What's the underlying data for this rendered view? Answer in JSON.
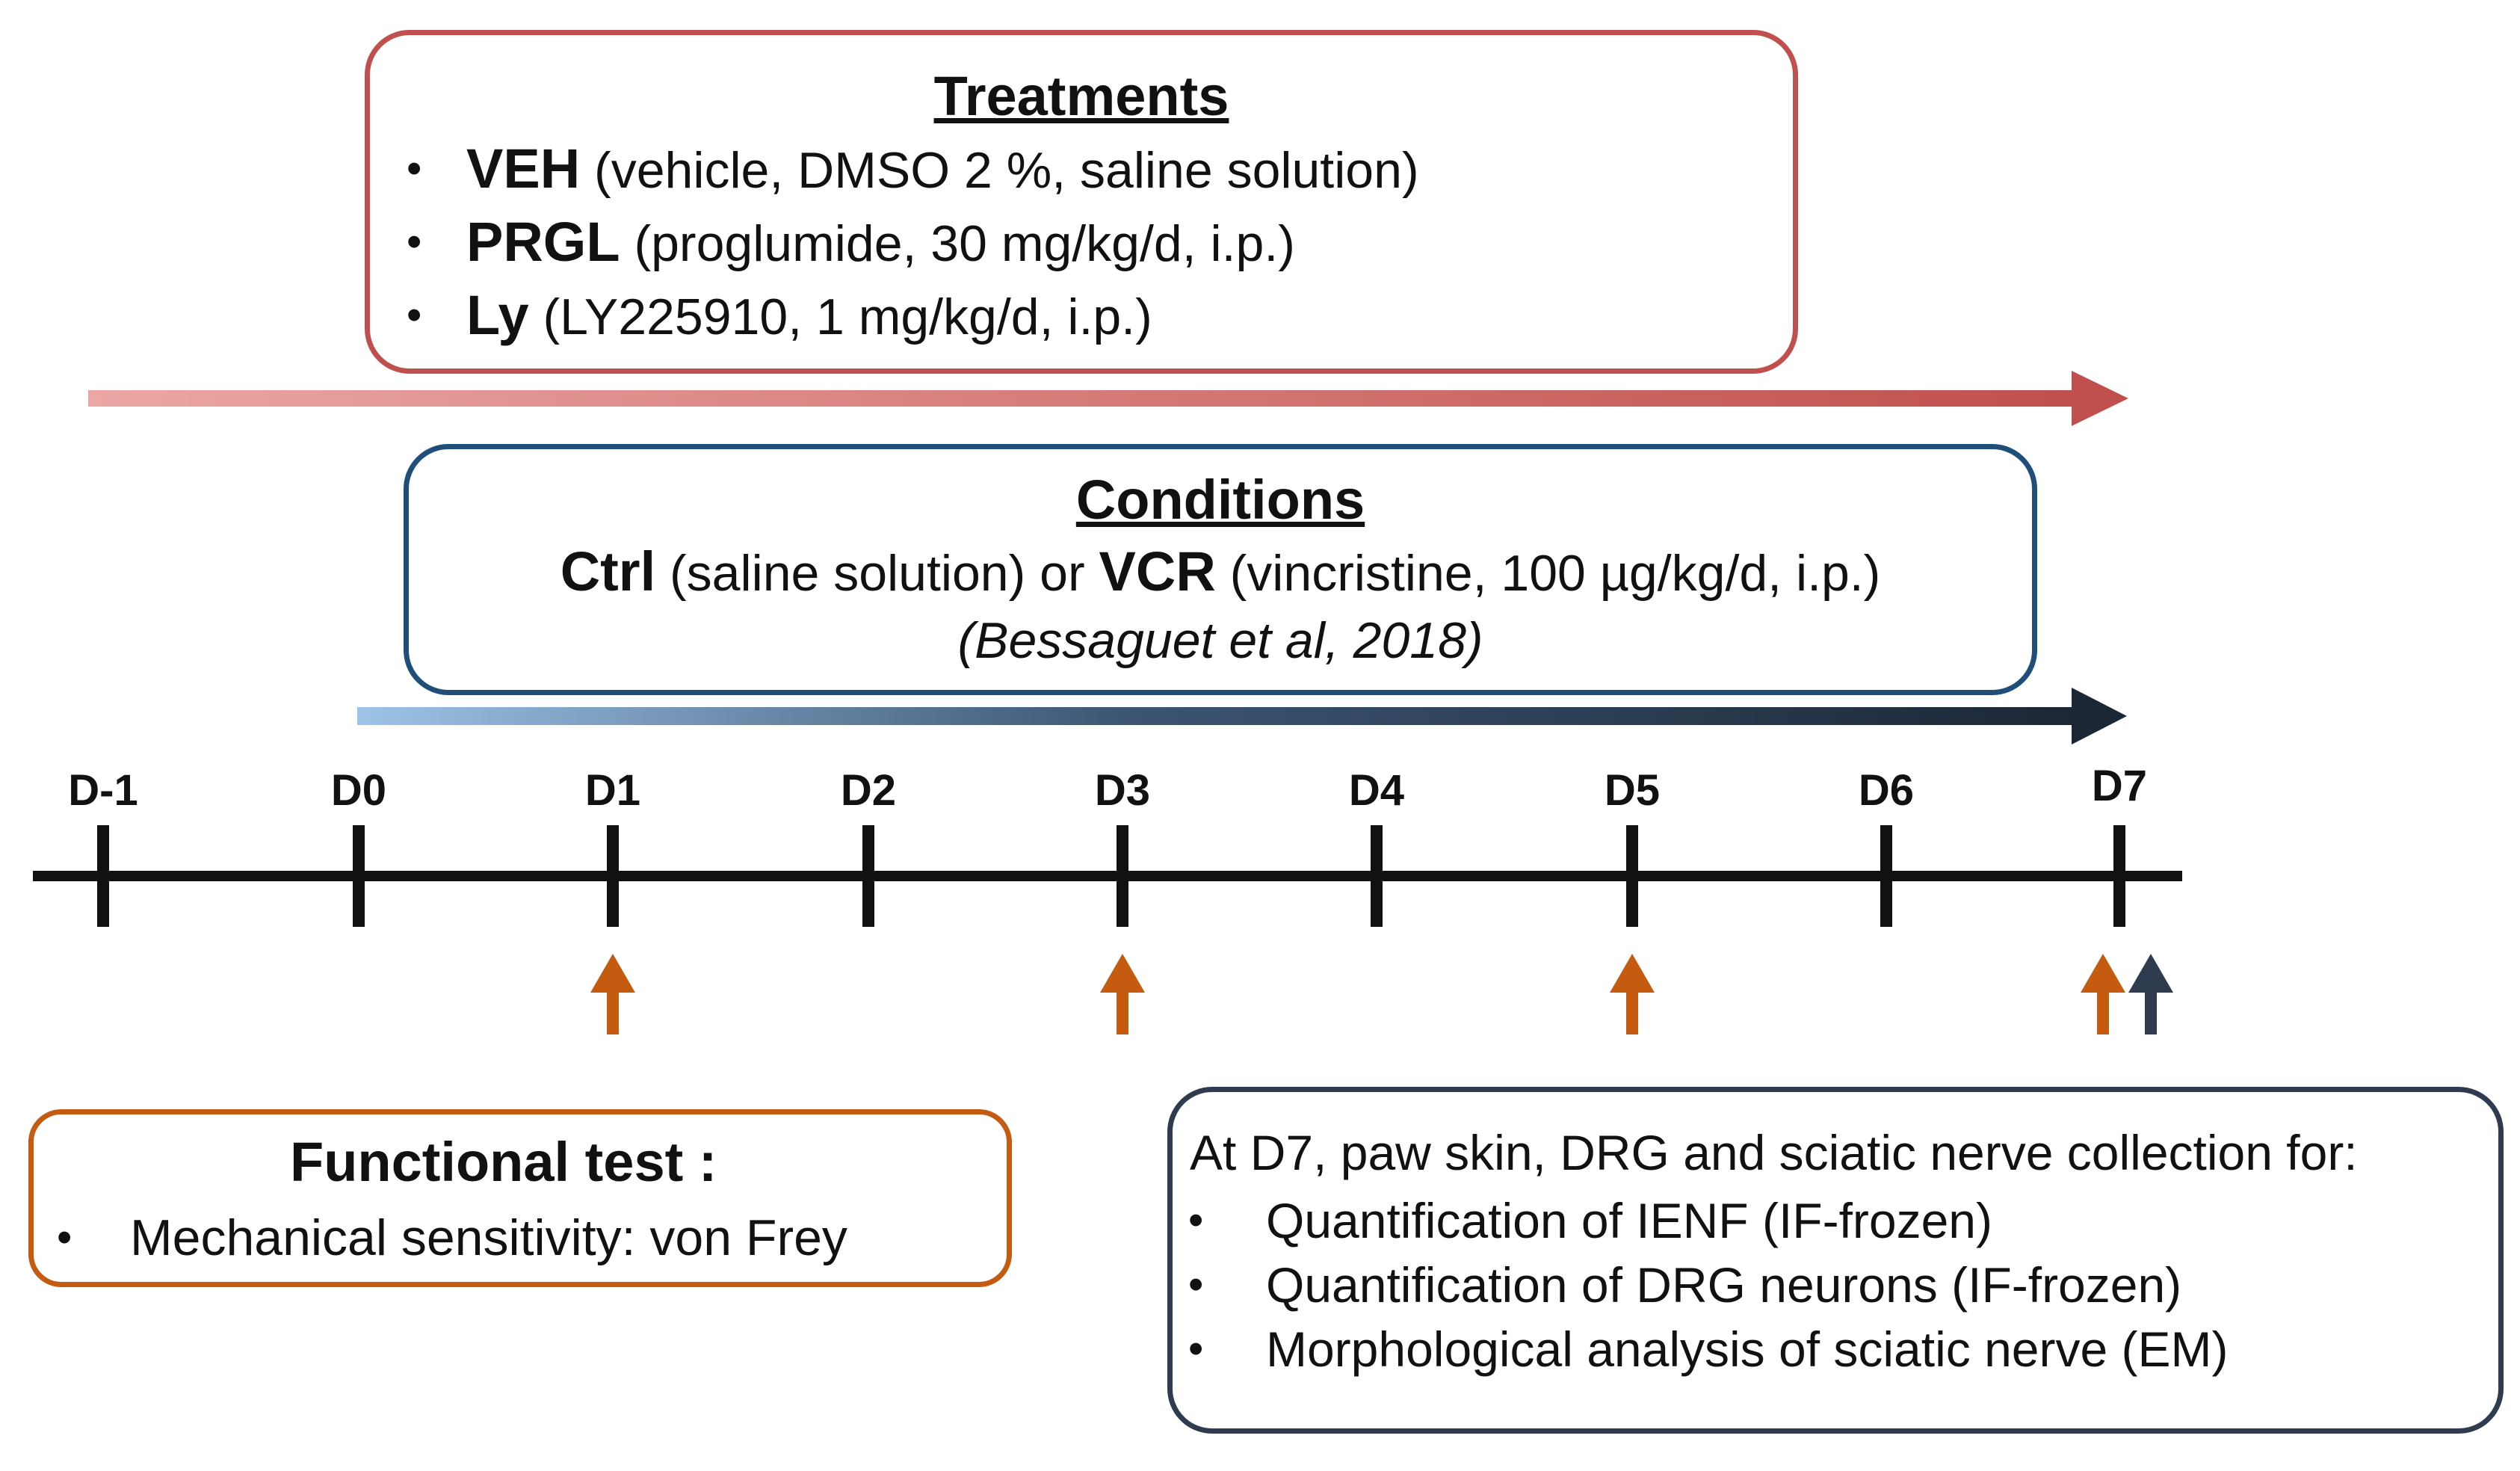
{
  "treatments": {
    "heading": "Treatments",
    "items": [
      {
        "abbr": "VEH",
        "detail": " (vehicle, DMSO 2 %, saline solution)"
      },
      {
        "abbr": "PRGL",
        "detail": " (proglumide, 30 mg/kg/d, i.p.)"
      },
      {
        "abbr": "Ly",
        "detail": " (LY225910, 1 mg/kg/d, i.p.)"
      }
    ]
  },
  "conditions": {
    "heading": "Conditions",
    "ctrl_abbr": "Ctrl",
    "ctrl_detail": " (saline solution) or ",
    "vcr_abbr": "VCR",
    "vcr_detail": " (vincristine, 100 µg/kg/d, i.p.)",
    "citation": "(Bessaguet et al, 2018)"
  },
  "timeline": {
    "days": [
      "D-1",
      "D0",
      "D1",
      "D2",
      "D3",
      "D4",
      "D5",
      "D6",
      "D7"
    ],
    "functional_test_days": [
      "D1",
      "D3",
      "D5",
      "D7"
    ],
    "collection_day": "D7"
  },
  "functional_test": {
    "title": "Functional test :",
    "items": [
      "Mechanical sensitivity: von Frey"
    ]
  },
  "collection": {
    "intro": "At D7, paw skin, DRG and sciatic nerve collection for:",
    "items": [
      "Quantification of IENF (IF-frozen)",
      "Quantification of DRG neurons (IF-frozen)",
      "Morphological analysis of sciatic nerve (EM)"
    ]
  },
  "colors": {
    "treatment": "#c0504d",
    "condition": "#1f4e79",
    "functional_arrow": "#c55a11",
    "collection_arrow": "#2f3b4f",
    "timeline": "#111111"
  }
}
